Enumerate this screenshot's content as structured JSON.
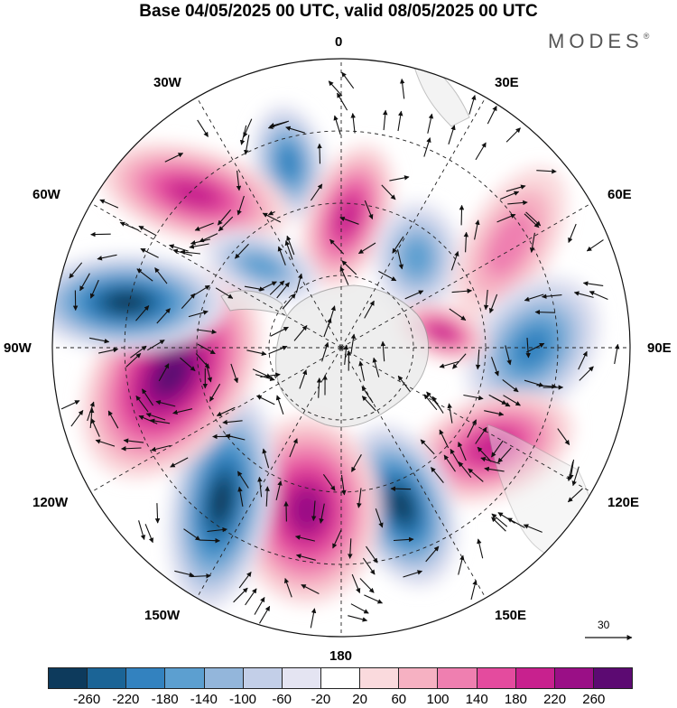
{
  "title": "Base 04/05/2025 00 UTC, valid 08/05/2025 00 UTC",
  "brand": "MODES",
  "brand_mark": "®",
  "projection": "south-polar-stereographic",
  "longitude_labels": {
    "lon_0": "0",
    "lon_30e": "30E",
    "lon_60e": "60E",
    "lon_90e": "90E",
    "lon_120e": "120E",
    "lon_150e": "150E",
    "lon_180": "180",
    "lon_150w": "150W",
    "lon_120w": "120W",
    "lon_90w": "90W",
    "lon_60w": "60W",
    "lon_30w": "30W"
  },
  "reference_vector": {
    "label": "30",
    "value": 30
  },
  "colorbar": {
    "colors": [
      "#0d3a5c",
      "#1b6496",
      "#3382bf",
      "#5c9fd0",
      "#93b6db",
      "#c3cfe8",
      "#e4e4f2",
      "#ffffff",
      "#fadadd",
      "#f6b1c2",
      "#ef7fb0",
      "#e44b9e",
      "#c8218e",
      "#9a0f86",
      "#5c0a72"
    ],
    "tick_labels": [
      "-260",
      "-220",
      "-180",
      "-140",
      "-100",
      "-60",
      "-20",
      "20",
      "60",
      "100",
      "140",
      "180",
      "220",
      "260"
    ]
  },
  "anomaly_centers": [
    {
      "name": "neg-30w",
      "sign": "negative",
      "value": -200
    },
    {
      "name": "pos-30w-60w",
      "sign": "positive",
      "value": 200
    },
    {
      "name": "pos-0",
      "sign": "positive",
      "value": 180
    },
    {
      "name": "neg-40e",
      "sign": "negative",
      "value": -150
    },
    {
      "name": "pos-60e",
      "sign": "positive",
      "value": 100
    },
    {
      "name": "neg-90e",
      "sign": "negative",
      "value": -190
    },
    {
      "name": "pos-90e",
      "sign": "positive",
      "value": 190
    },
    {
      "name": "pos-120e",
      "sign": "positive",
      "value": 200
    },
    {
      "name": "neg-150e",
      "sign": "negative",
      "value": -260
    },
    {
      "name": "pos-180",
      "sign": "positive",
      "value": 230
    },
    {
      "name": "neg-150w",
      "sign": "negative",
      "value": -260
    },
    {
      "name": "pos-110w",
      "sign": "positive",
      "value": 250
    },
    {
      "name": "neg-80w",
      "sign": "negative",
      "value": -270
    },
    {
      "name": "neg-60w",
      "sign": "negative",
      "value": -160
    }
  ]
}
